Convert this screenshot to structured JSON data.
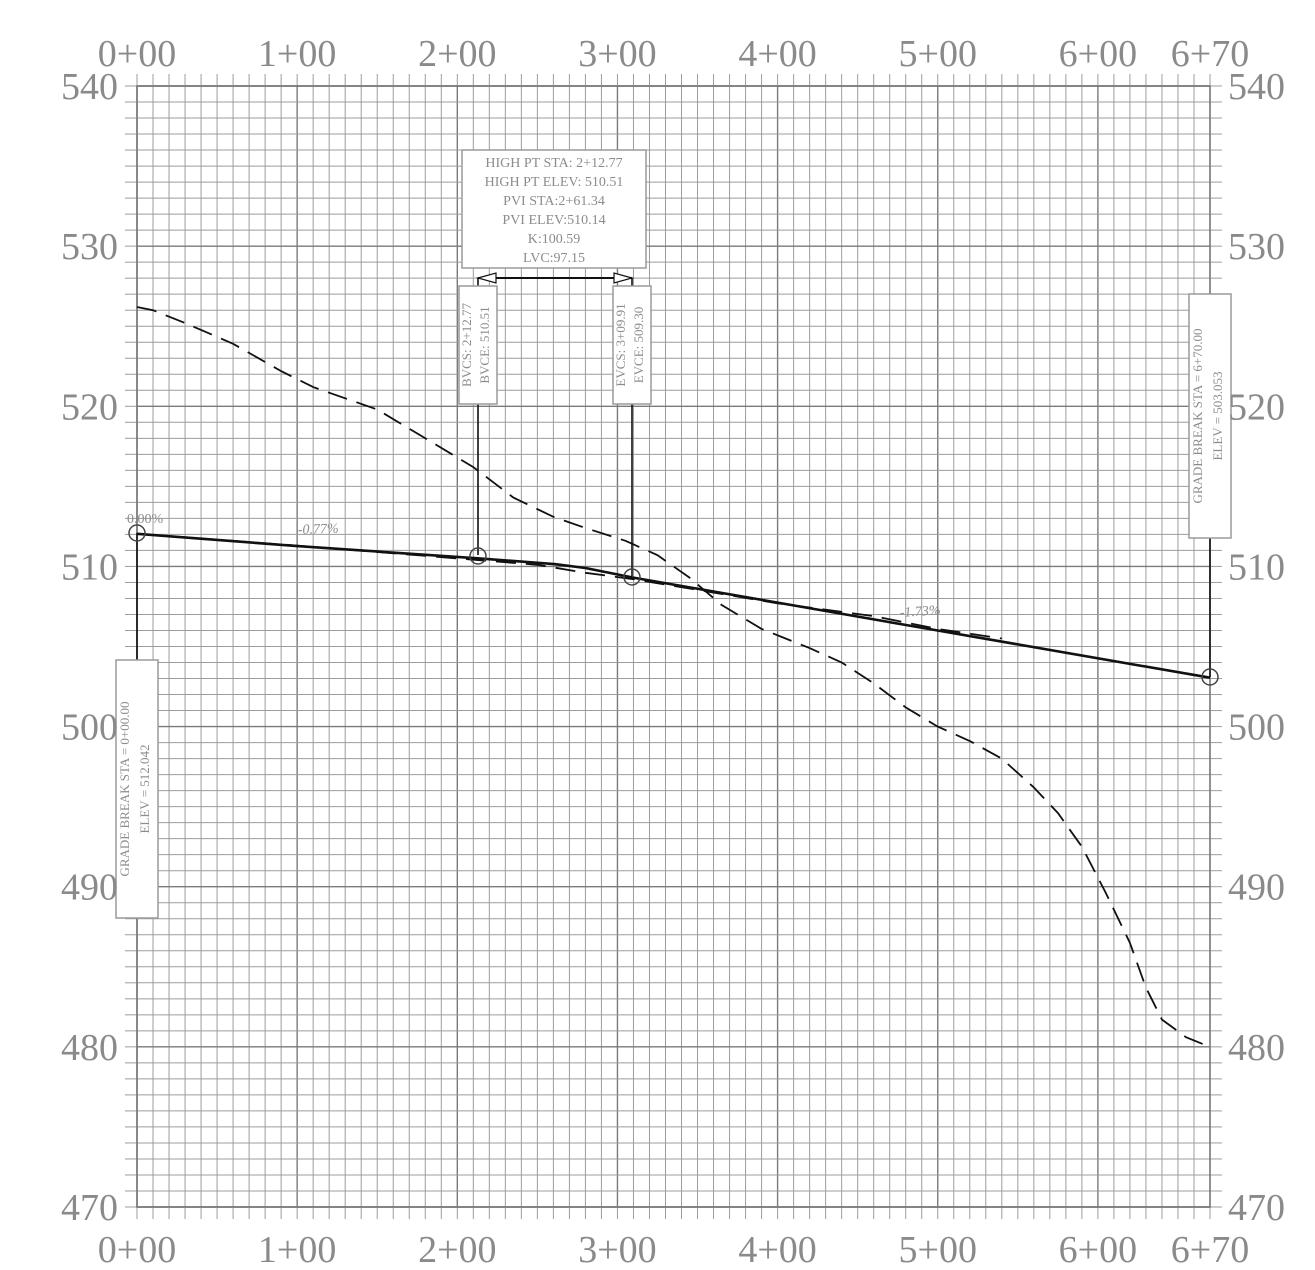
{
  "chart_data": {
    "type": "line",
    "x_axis": {
      "range": [
        0,
        670
      ],
      "tick_labels": [
        "0+00",
        "1+00",
        "2+00",
        "3+00",
        "4+00",
        "5+00",
        "6+00",
        "6+70"
      ],
      "tick_values": [
        0,
        100,
        200,
        300,
        400,
        500,
        600,
        670
      ]
    },
    "y_axis": {
      "range": [
        470,
        540
      ],
      "tick_labels": [
        "470",
        "480",
        "490",
        "500",
        "510",
        "520",
        "530",
        "540"
      ],
      "tick_values": [
        470,
        480,
        490,
        500,
        510,
        520,
        530,
        540
      ]
    },
    "grid": true,
    "series": [
      {
        "style": "solid",
        "points": [
          [
            0,
            512.04
          ],
          [
            100,
            511.27
          ],
          [
            212.77,
            510.51
          ],
          [
            240,
            510.3
          ],
          [
            261.34,
            510.14
          ],
          [
            280,
            509.9
          ],
          [
            309.91,
            509.3
          ],
          [
            400,
            507.74
          ],
          [
            500,
            506.0
          ],
          [
            670,
            503.05
          ]
        ]
      },
      {
        "style": "dashed",
        "points": [
          [
            0,
            526.2
          ],
          [
            10,
            526.0
          ],
          [
            30,
            525.2
          ],
          [
            60,
            523.9
          ],
          [
            90,
            522.2
          ],
          [
            110,
            521.2
          ],
          [
            130,
            520.5
          ],
          [
            150,
            519.8
          ],
          [
            175,
            518.3
          ],
          [
            210,
            516.2
          ],
          [
            235,
            514.3
          ],
          [
            260,
            513.1
          ],
          [
            280,
            512.4
          ],
          [
            305,
            511.6
          ],
          [
            325,
            510.7
          ],
          [
            345,
            509.3
          ],
          [
            365,
            507.6
          ],
          [
            390,
            506.1
          ],
          [
            420,
            504.9
          ],
          [
            440,
            504.0
          ],
          [
            460,
            502.7
          ],
          [
            480,
            501.2
          ],
          [
            500,
            500.0
          ],
          [
            520,
            499.1
          ],
          [
            540,
            498.0
          ],
          [
            560,
            496.2
          ],
          [
            575,
            494.6
          ],
          [
            590,
            492.5
          ],
          [
            605,
            489.6
          ],
          [
            620,
            486.5
          ],
          [
            630,
            483.7
          ],
          [
            640,
            481.7
          ],
          [
            655,
            480.6
          ],
          [
            670,
            480.0
          ]
        ]
      },
      {
        "style": "dashed",
        "points": [
          [
            0,
            512.04
          ],
          [
            100,
            511.3
          ],
          [
            200,
            510.5
          ],
          [
            250,
            510.1
          ],
          [
            280,
            509.6
          ],
          [
            310,
            509.2
          ],
          [
            400,
            507.7
          ],
          [
            460,
            506.9
          ],
          [
            500,
            506.1
          ],
          [
            540,
            505.5
          ]
        ]
      }
    ],
    "labels": {
      "grade_start": "0.00%",
      "grade_1": "-0.77%",
      "grade_2": "-1.73%",
      "curve_info": [
        "HIGH PT STA: 2+12.77",
        "HIGH PT ELEV: 510.51",
        "PVI STA:2+61.34",
        "PVI ELEV:510.14",
        "K:100.59",
        "LVC:97.15"
      ],
      "bvc": [
        "BVCS: 2+12.77",
        "BVCE: 510.51"
      ],
      "evc": [
        "EVCS: 3+09.91",
        "EVCE: 509.30"
      ],
      "grade_break_start": [
        "GRADE BREAK STA = 0+00.00",
        "ELEV = 512.042"
      ],
      "grade_break_end": [
        "GRADE BREAK STA = 6+70.00",
        "ELEV = 503.053"
      ]
    }
  }
}
